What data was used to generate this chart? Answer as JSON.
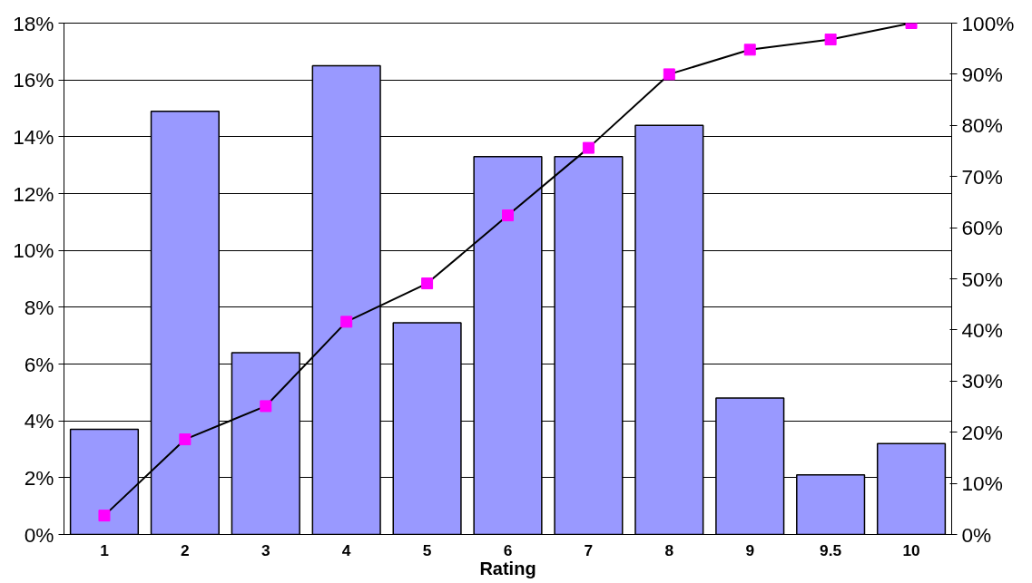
{
  "chart_data": {
    "type": "bar",
    "xlabel": "Rating",
    "categories": [
      "1",
      "2",
      "3",
      "4",
      "5",
      "6",
      "7",
      "8",
      "9",
      "9.5",
      "10"
    ],
    "series": [
      {
        "color": "#9999ff",
        "values": [
          3.7,
          14.9,
          6.4,
          16.5,
          7.45,
          13.3,
          13.3,
          14.4,
          4.8,
          2.1,
          3.2
        ]
      },
      {
        "type": "line",
        "axis": "y2",
        "color": "#ff00ff",
        "marker": "square",
        "values": [
          3.7,
          18.6,
          25.1,
          41.6,
          49.1,
          62.4,
          75.6,
          90.0,
          94.8,
          96.8,
          100
        ]
      }
    ],
    "ylim": [
      0,
      18
    ],
    "yticks": [
      {
        "value": 0,
        "label": "0%"
      },
      {
        "value": 2,
        "label": "2%"
      },
      {
        "value": 4,
        "label": "4%"
      },
      {
        "value": 6,
        "label": "6%"
      },
      {
        "value": 8,
        "label": "8%"
      },
      {
        "value": 10,
        "label": "10%"
      },
      {
        "value": 12,
        "label": "12%"
      },
      {
        "value": 14,
        "label": "14%"
      },
      {
        "value": 16,
        "label": "16%"
      },
      {
        "value": 18,
        "label": "18%"
      }
    ],
    "y2lim": [
      0,
      100
    ],
    "y2ticks": [
      {
        "value": 0,
        "label": "0%"
      },
      {
        "value": 10,
        "label": "10%"
      },
      {
        "value": 20,
        "label": "20%"
      },
      {
        "value": 30,
        "label": "30%"
      },
      {
        "value": 40,
        "label": "40%"
      },
      {
        "value": 50,
        "label": "50%"
      },
      {
        "value": 60,
        "label": "60%"
      },
      {
        "value": 70,
        "label": "70%"
      },
      {
        "value": 80,
        "label": "80%"
      },
      {
        "value": 90,
        "label": "90%"
      },
      {
        "value": 100,
        "label": "100%"
      }
    ],
    "grid": "y"
  }
}
